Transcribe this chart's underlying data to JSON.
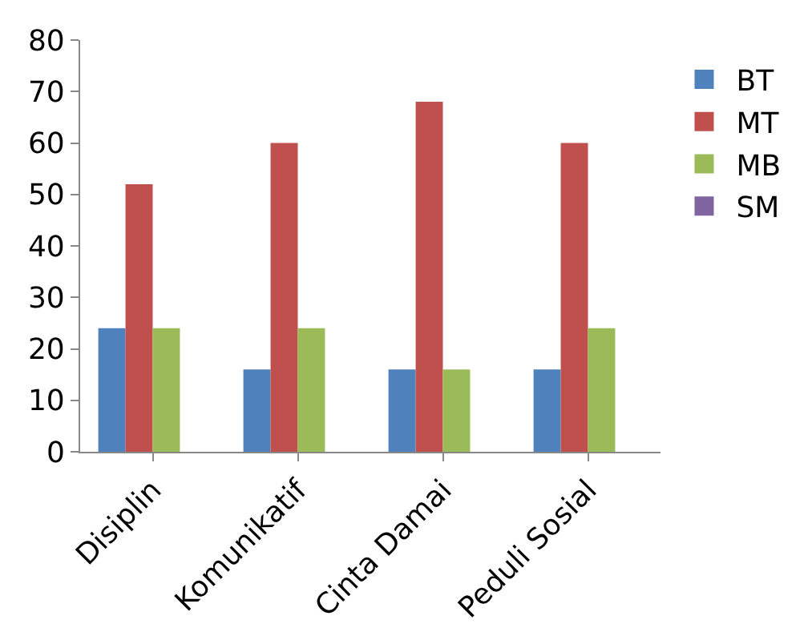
{
  "chart_data": {
    "type": "bar",
    "categories": [
      "Disiplin",
      "Komunikatif",
      "Cinta Damai",
      "Peduli Sosial"
    ],
    "series": [
      {
        "name": "BT",
        "color": "#4f81bd",
        "values": [
          24,
          16,
          16,
          16
        ]
      },
      {
        "name": "MT",
        "color": "#c0504d",
        "values": [
          52,
          60,
          68,
          60
        ]
      },
      {
        "name": "MB",
        "color": "#9bbb59",
        "values": [
          24,
          24,
          16,
          24
        ]
      },
      {
        "name": "SM",
        "color": "#8064a2",
        "values": [
          0,
          0,
          0,
          0
        ]
      }
    ],
    "ylim": [
      0,
      80
    ],
    "yticks": [
      0,
      10,
      20,
      30,
      40,
      50,
      60,
      70,
      80
    ],
    "grid": false,
    "legend": "right"
  }
}
